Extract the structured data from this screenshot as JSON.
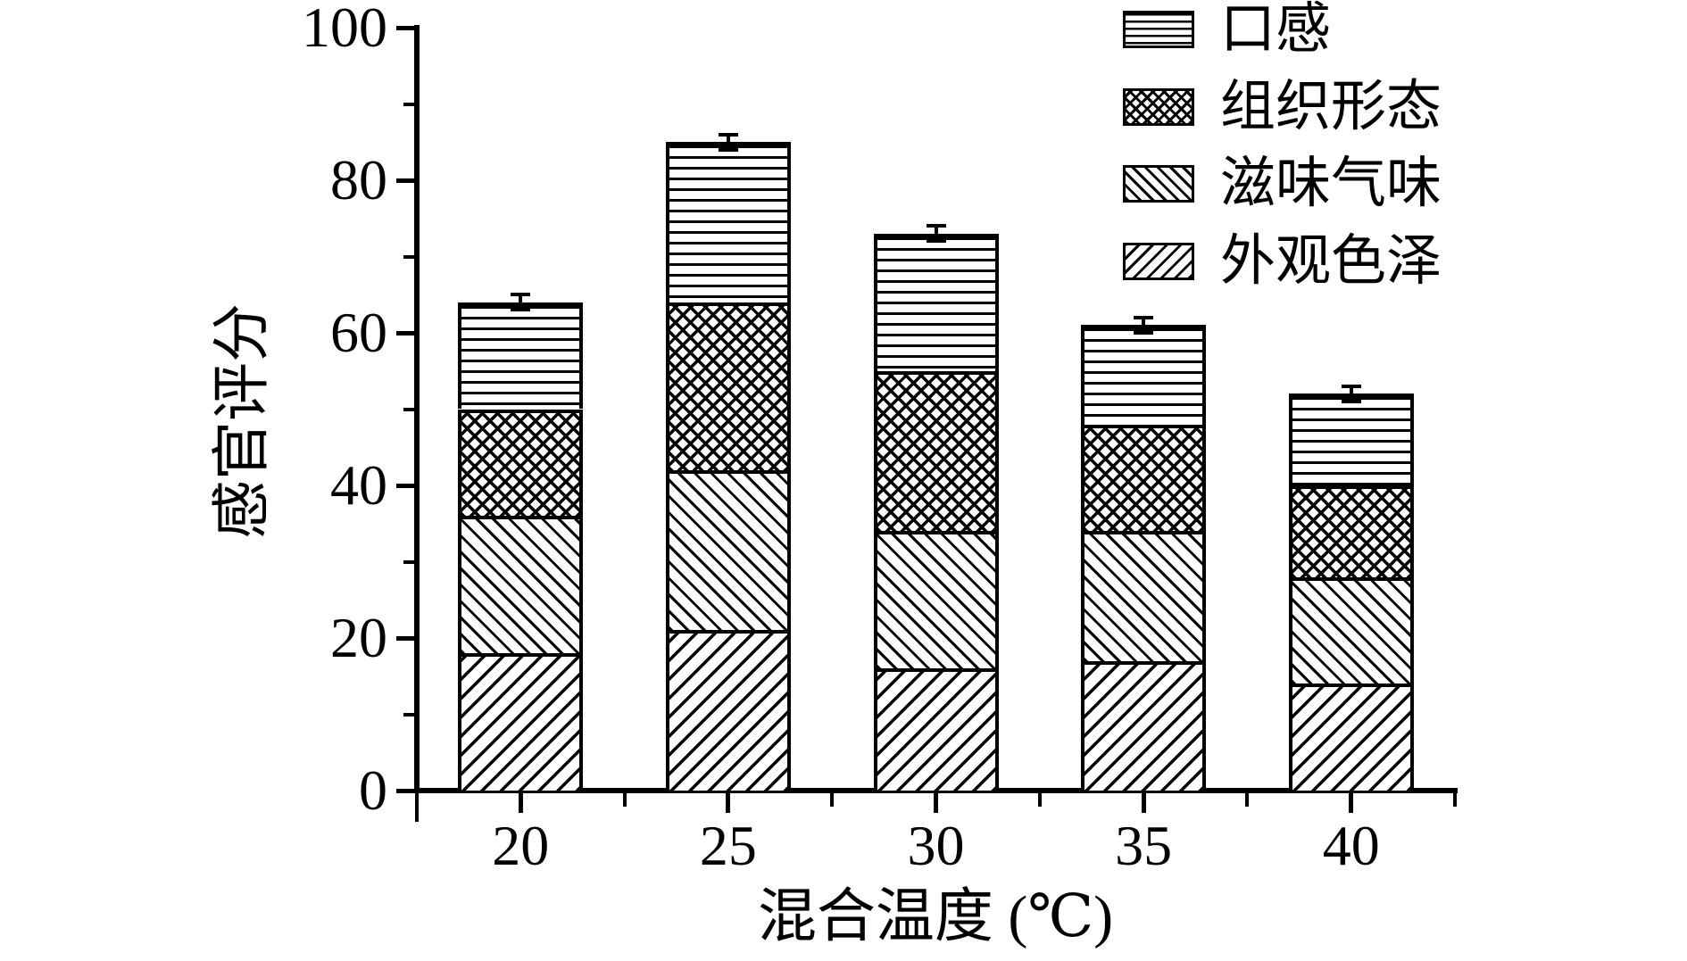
{
  "figure": {
    "background": "#ffffff",
    "ink_color": "#000000"
  },
  "chart_data": {
    "type": "bar",
    "stacked": true,
    "title": "",
    "xlabel": "混合温度 (℃)",
    "ylabel": "感官评分",
    "categories": [
      "20",
      "25",
      "30",
      "35",
      "40"
    ],
    "series": [
      {
        "name": "外观色泽",
        "pattern": "fslash",
        "values": [
          18,
          21,
          16,
          17,
          14
        ]
      },
      {
        "name": "滋味气味",
        "pattern": "bslash",
        "values": [
          18,
          21,
          18,
          17,
          14
        ]
      },
      {
        "name": "组织形态",
        "pattern": "cross",
        "values": [
          14,
          22,
          21,
          14,
          12
        ]
      },
      {
        "name": "口感",
        "pattern": "hlines",
        "values": [
          14,
          21,
          18,
          13,
          12
        ]
      }
    ],
    "totals": [
      64,
      85,
      73,
      61,
      52
    ],
    "error_bars": {
      "type": "symmetric",
      "values": [
        1,
        1,
        1,
        1,
        1
      ]
    },
    "ylim": [
      0,
      100
    ],
    "yticks": [
      0,
      20,
      40,
      60,
      80,
      100
    ],
    "yminorticks": [
      10,
      30,
      50,
      70,
      90
    ],
    "grid": false,
    "legend_position": "top-right",
    "legend_order": [
      "口感",
      "组织形态",
      "滋味气味",
      "外观色泽"
    ]
  }
}
